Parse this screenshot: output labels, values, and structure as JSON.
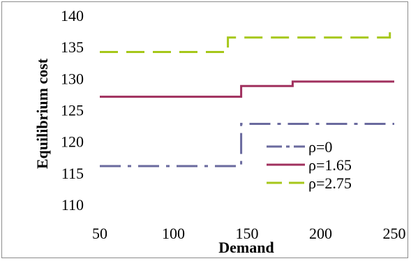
{
  "chart_data": {
    "type": "line",
    "title": "",
    "xlabel": "Demand",
    "ylabel": "Equilibrium cost",
    "xlim": [
      50,
      250
    ],
    "ylim": [
      110,
      140
    ],
    "xticks": [
      50,
      100,
      150,
      200,
      250
    ],
    "yticks": [
      110,
      115,
      120,
      125,
      130,
      135,
      140
    ],
    "grid": false,
    "legend_position": "bottom-right",
    "series": [
      {
        "name": "ρ=0",
        "color": "#6a6a9e",
        "style": "dash-dot",
        "x": [
          50,
          146,
          146,
          250
        ],
        "y": [
          116.2,
          116.2,
          122.9,
          122.9
        ]
      },
      {
        "name": "ρ=1.65",
        "color": "#a0305e",
        "style": "solid",
        "x": [
          50,
          146,
          146,
          181,
          181,
          250
        ],
        "y": [
          127.2,
          127.2,
          128.9,
          128.9,
          129.6,
          129.6
        ]
      },
      {
        "name": "ρ=2.75",
        "color": "#a6c71a",
        "style": "dashed",
        "x": [
          50,
          137,
          137,
          247,
          247,
          250
        ],
        "y": [
          134.3,
          134.3,
          136.6,
          136.6,
          137.8,
          137.8
        ]
      }
    ]
  }
}
